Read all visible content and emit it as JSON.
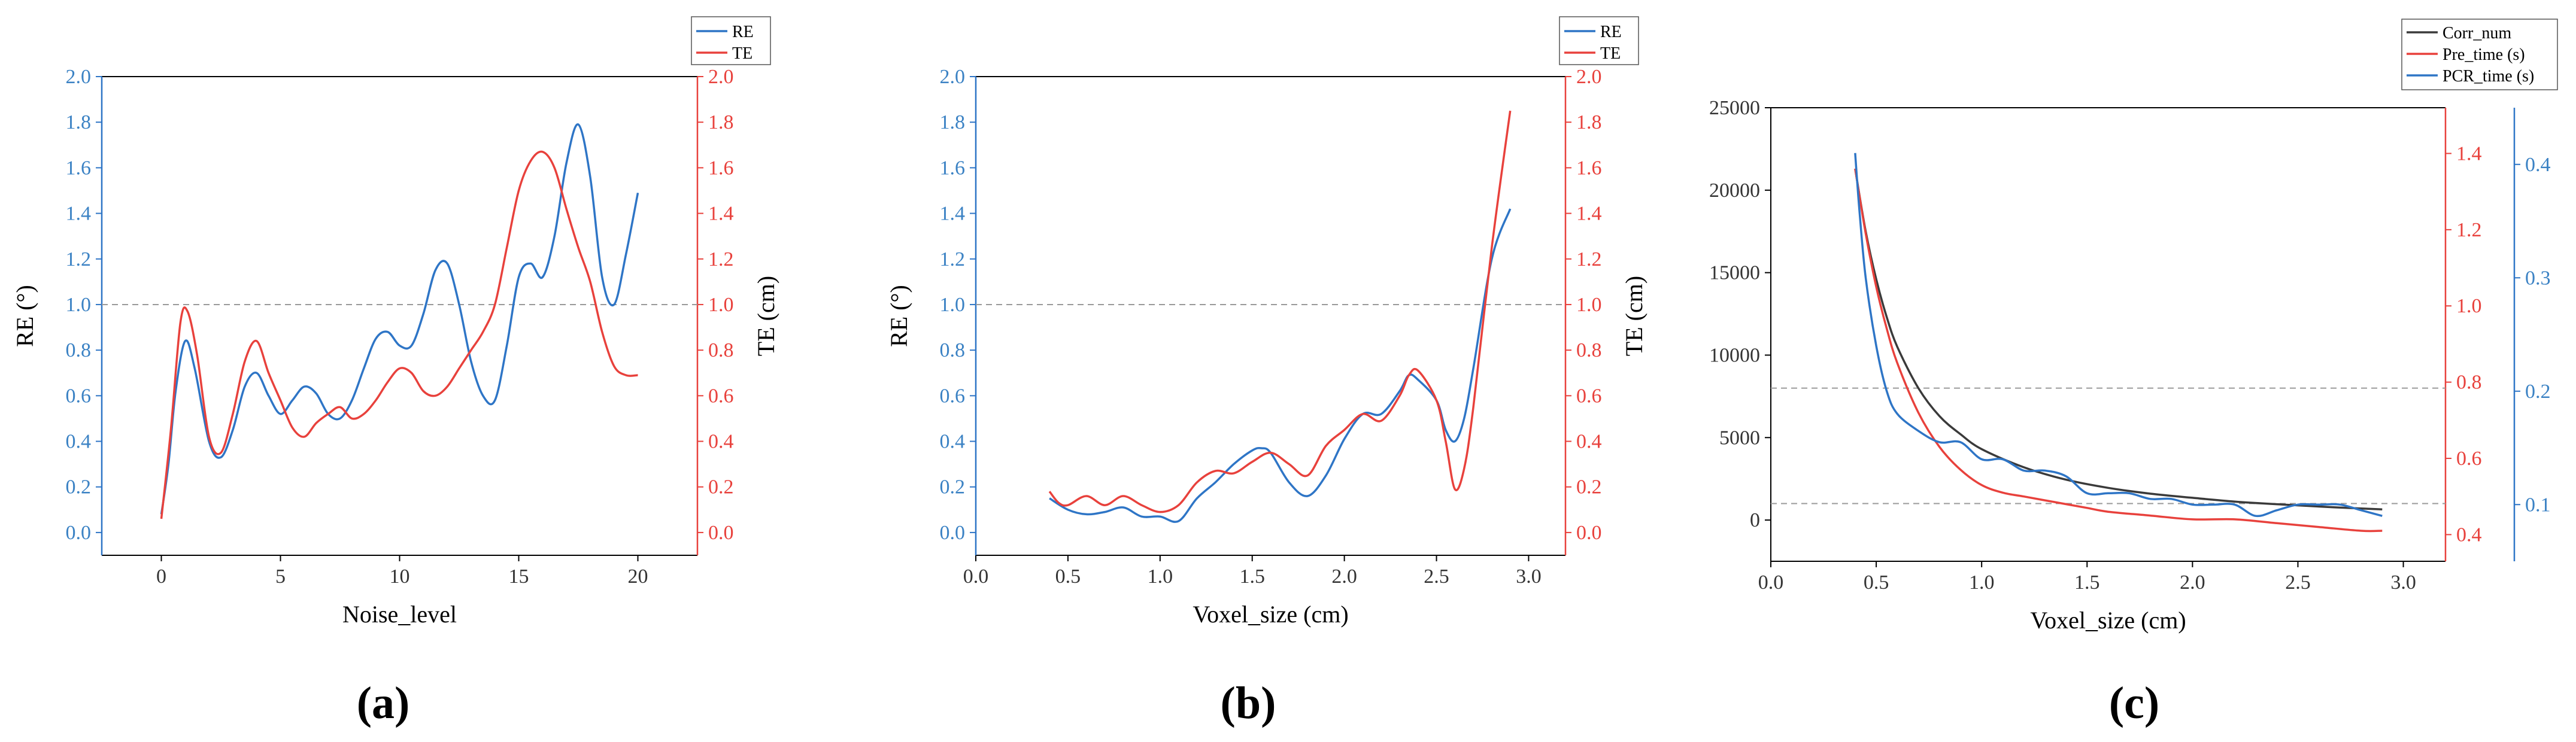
{
  "colors": {
    "blue": "#2e75c6",
    "red": "#e8413c",
    "black": "#3a3a3a",
    "dash": "#9a9a9a"
  },
  "chart_data": [
    {
      "type": "line",
      "panel_label": "(a)",
      "xlabel": "Noise_level",
      "ylabel_left": "RE (°)",
      "ylabel_right": "TE (cm)",
      "xlim": [
        -2.5,
        22.5
      ],
      "xticks": [
        "0",
        "5",
        "10",
        "15",
        "20"
      ],
      "xtick_values": [
        0,
        5,
        10,
        15,
        20
      ],
      "ylim_left": [
        -0.1,
        2.0
      ],
      "ylim_right": [
        -0.1,
        2.0
      ],
      "yticks_left": [
        "0.0",
        "0.2",
        "0.4",
        "0.6",
        "0.8",
        "1.0",
        "1.2",
        "1.4",
        "1.6",
        "1.8",
        "2.0"
      ],
      "yticks_right": [
        "0.0",
        "0.2",
        "0.4",
        "0.6",
        "0.8",
        "1.0",
        "1.2",
        "1.4",
        "1.6",
        "1.8",
        "2.0"
      ],
      "reference_lines": [
        {
          "axis": "left",
          "value": 1.0
        }
      ],
      "legend": [
        "RE",
        "TE"
      ],
      "series": [
        {
          "name": "RE",
          "axis": "left",
          "color": "blue",
          "x": [
            0,
            0.3,
            0.6,
            1.0,
            1.4,
            2.0,
            2.5,
            3.0,
            3.5,
            4.0,
            4.5,
            5.0,
            5.5,
            6.0,
            6.5,
            7.0,
            7.5,
            8.0,
            8.5,
            9.0,
            9.5,
            10.0,
            10.5,
            11.0,
            11.5,
            12.0,
            12.5,
            13.0,
            13.5,
            14.0,
            14.5,
            15.0,
            15.5,
            16.0,
            16.5,
            17.0,
            17.5,
            18.0,
            18.5,
            19.0,
            19.5,
            20.0
          ],
          "y": [
            0.08,
            0.3,
            0.62,
            0.84,
            0.72,
            0.4,
            0.33,
            0.45,
            0.64,
            0.7,
            0.6,
            0.52,
            0.58,
            0.64,
            0.61,
            0.52,
            0.5,
            0.58,
            0.72,
            0.85,
            0.88,
            0.82,
            0.82,
            0.96,
            1.15,
            1.18,
            1.0,
            0.75,
            0.6,
            0.58,
            0.82,
            1.12,
            1.18,
            1.12,
            1.3,
            1.62,
            1.79,
            1.56,
            1.12,
            1.0,
            1.22,
            1.49
          ]
        },
        {
          "name": "TE",
          "axis": "right",
          "color": "red",
          "x": [
            0,
            0.4,
            0.8,
            1.1,
            1.5,
            2.0,
            2.5,
            3.0,
            3.5,
            4.0,
            4.5,
            5.0,
            5.5,
            6.0,
            6.5,
            7.0,
            7.5,
            8.0,
            8.5,
            9.0,
            9.5,
            10.0,
            10.5,
            11.0,
            11.5,
            12.0,
            12.5,
            13.0,
            13.5,
            14.0,
            14.5,
            15.0,
            15.5,
            16.0,
            16.5,
            17.0,
            17.5,
            18.0,
            18.5,
            19.0,
            19.5,
            20.0
          ],
          "y": [
            0.06,
            0.45,
            0.92,
            0.97,
            0.78,
            0.42,
            0.35,
            0.52,
            0.75,
            0.84,
            0.7,
            0.58,
            0.46,
            0.42,
            0.48,
            0.52,
            0.55,
            0.5,
            0.52,
            0.58,
            0.66,
            0.72,
            0.7,
            0.62,
            0.6,
            0.64,
            0.72,
            0.8,
            0.88,
            1.0,
            1.25,
            1.5,
            1.63,
            1.67,
            1.6,
            1.42,
            1.25,
            1.1,
            0.88,
            0.73,
            0.69,
            0.69
          ]
        }
      ]
    },
    {
      "type": "line",
      "panel_label": "(b)",
      "xlabel": "Voxel_size (cm)",
      "ylabel_left": "RE (°)",
      "ylabel_right": "TE (cm)",
      "xlim": [
        0.0,
        3.2
      ],
      "xticks": [
        "0.0",
        "0.5",
        "1.0",
        "1.5",
        "2.0",
        "2.5",
        "3.0"
      ],
      "xtick_values": [
        0.0,
        0.5,
        1.0,
        1.5,
        2.0,
        2.5,
        3.0
      ],
      "ylim_left": [
        -0.1,
        2.0
      ],
      "ylim_right": [
        -0.1,
        2.0
      ],
      "yticks_left": [
        "0.0",
        "0.2",
        "0.4",
        "0.6",
        "0.8",
        "1.0",
        "1.2",
        "1.4",
        "1.6",
        "1.8",
        "2.0"
      ],
      "yticks_right": [
        "0.0",
        "0.2",
        "0.4",
        "0.6",
        "0.8",
        "1.0",
        "1.2",
        "1.4",
        "1.6",
        "1.8",
        "2.0"
      ],
      "reference_lines": [
        {
          "axis": "left",
          "value": 1.0
        }
      ],
      "legend": [
        "RE",
        "TE"
      ],
      "series": [
        {
          "name": "RE",
          "axis": "left",
          "color": "blue",
          "x": [
            0.4,
            0.5,
            0.6,
            0.7,
            0.8,
            0.9,
            1.0,
            1.1,
            1.2,
            1.3,
            1.4,
            1.5,
            1.55,
            1.6,
            1.7,
            1.8,
            1.9,
            2.0,
            2.1,
            2.2,
            2.3,
            2.35,
            2.4,
            2.5,
            2.55,
            2.6,
            2.65,
            2.7,
            2.8,
            2.9
          ],
          "y": [
            0.15,
            0.1,
            0.08,
            0.09,
            0.11,
            0.07,
            0.07,
            0.05,
            0.15,
            0.22,
            0.3,
            0.36,
            0.37,
            0.35,
            0.22,
            0.16,
            0.25,
            0.41,
            0.52,
            0.52,
            0.62,
            0.69,
            0.67,
            0.58,
            0.45,
            0.4,
            0.5,
            0.72,
            1.2,
            1.42
          ]
        },
        {
          "name": "TE",
          "axis": "right",
          "color": "red",
          "x": [
            0.4,
            0.45,
            0.5,
            0.6,
            0.7,
            0.8,
            0.9,
            1.0,
            1.1,
            1.2,
            1.3,
            1.4,
            1.5,
            1.6,
            1.7,
            1.8,
            1.9,
            2.0,
            2.1,
            2.2,
            2.3,
            2.35,
            2.4,
            2.5,
            2.55,
            2.6,
            2.65,
            2.7,
            2.8,
            2.9
          ],
          "y": [
            0.18,
            0.13,
            0.12,
            0.16,
            0.12,
            0.16,
            0.12,
            0.09,
            0.12,
            0.22,
            0.27,
            0.26,
            0.31,
            0.35,
            0.3,
            0.25,
            0.38,
            0.45,
            0.52,
            0.49,
            0.6,
            0.69,
            0.71,
            0.58,
            0.4,
            0.19,
            0.28,
            0.55,
            1.25,
            1.85
          ]
        }
      ]
    },
    {
      "type": "line",
      "panel_label": "(c)",
      "xlabel": "Voxel_size (cm)",
      "xlim": [
        0.0,
        3.2
      ],
      "xticks": [
        "0.0",
        "0.5",
        "1.0",
        "1.5",
        "2.0",
        "2.5",
        "3.0"
      ],
      "xtick_values": [
        0.0,
        0.5,
        1.0,
        1.5,
        2.0,
        2.5,
        3.0
      ],
      "ylim_left": [
        -2500,
        25000
      ],
      "yticks_left": [
        "0",
        "5000",
        "10000",
        "15000",
        "20000",
        "25000"
      ],
      "yticks_left_values": [
        0,
        5000,
        10000,
        15000,
        20000,
        25000
      ],
      "ylim_red": [
        0.33,
        1.52
      ],
      "yticks_red": [
        "0.4",
        "0.6",
        "0.8",
        "1.0",
        "1.2",
        "1.4"
      ],
      "yticks_red_values": [
        0.4,
        0.6,
        0.8,
        1.0,
        1.2,
        1.4
      ],
      "ylim_blue": [
        0.05,
        0.45
      ],
      "yticks_blue": [
        "0.1",
        "0.2",
        "0.3",
        "0.4"
      ],
      "yticks_blue_values": [
        0.1,
        0.2,
        0.3,
        0.4
      ],
      "reference_lines": [
        {
          "axis": "left",
          "value": 8000
        },
        {
          "axis": "left",
          "value": 1000
        }
      ],
      "legend": [
        "Corr_num",
        "Pre_time (s)",
        "PCR_time (s)"
      ],
      "series": [
        {
          "name": "Corr_num",
          "axis": "left",
          "color": "black",
          "x": [
            0.4,
            0.45,
            0.5,
            0.55,
            0.6,
            0.7,
            0.8,
            0.9,
            1.0,
            1.2,
            1.4,
            1.6,
            1.8,
            2.0,
            2.2,
            2.4,
            2.6,
            2.8,
            2.9
          ],
          "y": [
            21300,
            17500,
            14600,
            12300,
            10500,
            8000,
            6300,
            5200,
            4300,
            3200,
            2450,
            1950,
            1600,
            1350,
            1120,
            960,
            820,
            700,
            650
          ]
        },
        {
          "name": "Pre_time (s)",
          "axis": "red",
          "color": "red",
          "x": [
            0.4,
            0.45,
            0.5,
            0.55,
            0.6,
            0.7,
            0.8,
            0.9,
            1.0,
            1.1,
            1.2,
            1.3,
            1.4,
            1.5,
            1.6,
            1.8,
            2.0,
            2.2,
            2.4,
            2.6,
            2.8,
            2.9
          ],
          "y": [
            1.36,
            1.19,
            1.05,
            0.94,
            0.85,
            0.72,
            0.63,
            0.57,
            0.53,
            0.51,
            0.5,
            0.49,
            0.48,
            0.47,
            0.46,
            0.45,
            0.44,
            0.44,
            0.43,
            0.42,
            0.41,
            0.41
          ]
        },
        {
          "name": "PCR_time (s)",
          "axis": "blue",
          "color": "blue",
          "x": [
            0.4,
            0.42,
            0.45,
            0.5,
            0.55,
            0.6,
            0.7,
            0.8,
            0.9,
            1.0,
            1.1,
            1.2,
            1.3,
            1.4,
            1.5,
            1.6,
            1.7,
            1.8,
            1.9,
            2.0,
            2.1,
            2.2,
            2.3,
            2.4,
            2.5,
            2.6,
            2.7,
            2.8,
            2.9
          ],
          "y": [
            0.41,
            0.36,
            0.3,
            0.24,
            0.2,
            0.18,
            0.165,
            0.155,
            0.155,
            0.14,
            0.14,
            0.13,
            0.13,
            0.125,
            0.11,
            0.11,
            0.11,
            0.105,
            0.105,
            0.1,
            0.1,
            0.1,
            0.09,
            0.095,
            0.1,
            0.1,
            0.1,
            0.095,
            0.09
          ]
        }
      ]
    }
  ]
}
